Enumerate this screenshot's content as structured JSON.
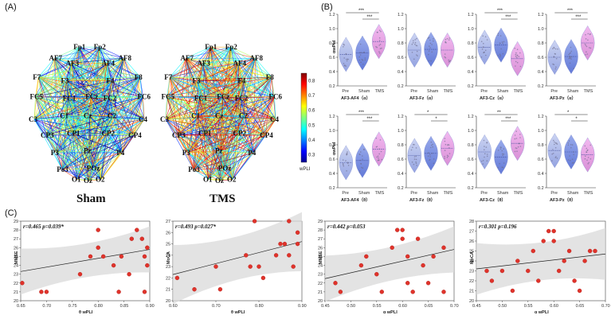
{
  "panel_letters": {
    "a": "(A)",
    "b": "(B)",
    "c": "(C)"
  },
  "network": {
    "titles": [
      "Sham",
      "TMS"
    ],
    "colorbar": {
      "label": "wPLI",
      "ticks": [
        "0.8",
        "0.7",
        "0.6",
        "0.5",
        "0.4",
        "0.3"
      ],
      "min": 0.25,
      "max": 0.85
    },
    "nodes": [
      {
        "label": "Fp1"
      },
      {
        "label": "Fp2"
      },
      {
        "label": "AF7"
      },
      {
        "label": "AF8"
      },
      {
        "label": "AF3"
      },
      {
        "label": "AF4"
      },
      {
        "label": "F7"
      },
      {
        "label": "F8"
      },
      {
        "label": "F3"
      },
      {
        "label": "F4"
      },
      {
        "label": "FC5"
      },
      {
        "label": "FC6"
      },
      {
        "label": "FC1"
      },
      {
        "label": "FCz"
      },
      {
        "label": "FC2"
      },
      {
        "label": "C3"
      },
      {
        "label": "C1"
      },
      {
        "label": "Cz"
      },
      {
        "label": "C2"
      },
      {
        "label": "C4"
      },
      {
        "label": "CP3"
      },
      {
        "label": "CP1"
      },
      {
        "label": "CP2"
      },
      {
        "label": "CP4"
      },
      {
        "label": "P3"
      },
      {
        "label": "P4"
      },
      {
        "label": "Pz"
      },
      {
        "label": "POz"
      },
      {
        "label": "O1"
      },
      {
        "label": "O2"
      },
      {
        "label": "Oz"
      },
      {
        "label": "Po3"
      }
    ]
  },
  "chart_data": [
    {
      "type": "violin",
      "panel": "B",
      "ylabel": "αwPLI",
      "xlabel": "AF3-AF4（α）",
      "categories": [
        "Pre",
        "Sham",
        "TMS"
      ],
      "ylim": [
        0.2,
        1.2
      ],
      "medians": [
        0.64,
        0.66,
        0.82
      ],
      "significance": [
        "***",
        "***"
      ]
    },
    {
      "type": "violin",
      "panel": "B",
      "ylabel": "",
      "xlabel": "AF3-Fz（α）",
      "categories": [
        "Pre",
        "Sham",
        "TMS"
      ],
      "ylim": [
        0.2,
        1.2
      ],
      "medians": [
        0.7,
        0.71,
        0.7
      ],
      "significance": []
    },
    {
      "type": "violin",
      "panel": "B",
      "ylabel": "",
      "xlabel": "AF3-Cz（α）",
      "categories": [
        "Pre",
        "Sham",
        "TMS"
      ],
      "ylim": [
        0.2,
        1.2
      ],
      "medians": [
        0.74,
        0.77,
        0.58
      ],
      "significance": [
        "***",
        "***"
      ]
    },
    {
      "type": "violin",
      "panel": "B",
      "ylabel": "",
      "xlabel": "AF3-Pz（α）",
      "categories": [
        "Pre",
        "Sham",
        "TMS"
      ],
      "ylim": [
        0.2,
        1.2
      ],
      "medians": [
        0.6,
        0.61,
        0.8
      ],
      "significance": [
        "***",
        "***"
      ]
    },
    {
      "type": "violin",
      "panel": "B",
      "ylabel": "αwPLI",
      "xlabel": "AF3-AF4（θ）",
      "categories": [
        "Pre",
        "Sham",
        "TMS"
      ],
      "ylim": [
        0.2,
        1.2
      ],
      "medians": [
        0.55,
        0.58,
        0.74
      ],
      "significance": [
        "***",
        "***"
      ]
    },
    {
      "type": "violin",
      "panel": "B",
      "ylabel": "",
      "xlabel": "AF3-Fz（θ）",
      "categories": [
        "Pre",
        "Sham",
        "TMS"
      ],
      "ylim": [
        0.2,
        1.2
      ],
      "medians": [
        0.65,
        0.68,
        0.75
      ],
      "significance": [
        "*",
        "*"
      ]
    },
    {
      "type": "violin",
      "panel": "B",
      "ylabel": "",
      "xlabel": "AF3-Cz（θ）",
      "categories": [
        "Pre",
        "Sham",
        "TMS"
      ],
      "ylim": [
        0.2,
        1.2
      ],
      "medians": [
        0.7,
        0.63,
        0.82
      ],
      "significance": [
        "**",
        "***"
      ]
    },
    {
      "type": "violin",
      "panel": "B",
      "ylabel": "",
      "xlabel": "AF3-Pz（θ）",
      "categories": [
        "Pre",
        "Sham",
        "TMS"
      ],
      "ylim": [
        0.2,
        1.2
      ],
      "medians": [
        0.72,
        0.7,
        0.66
      ],
      "significance": [
        "*",
        "*"
      ]
    },
    {
      "type": "scatter",
      "panel": "C",
      "stat": "r=0.465  p=0.039*",
      "xlabel": "θ wPLI",
      "ylabel": "MMSE",
      "xlim": [
        0.65,
        0.9
      ],
      "ylim": [
        20,
        29
      ],
      "xticks": [
        0.65,
        0.7,
        0.75,
        0.8,
        0.85,
        0.9
      ],
      "yticks": [
        20,
        21,
        22,
        23,
        24,
        25,
        26,
        27,
        28,
        29
      ],
      "tick_labels_x": [
        "0.65",
        "0.70",
        "0.75",
        "0.80",
        "0.85",
        "0.90"
      ],
      "tick_labels_y": [
        "20",
        "21",
        "22",
        "23",
        "24",
        "25",
        "26",
        "27",
        "28",
        "29"
      ],
      "x": [
        0.653,
        0.69,
        0.7,
        0.765,
        0.785,
        0.8,
        0.8,
        0.81,
        0.83,
        0.84,
        0.845,
        0.86,
        0.865,
        0.875,
        0.885,
        0.89,
        0.895,
        0.895,
        0.89
      ],
      "y": [
        22,
        21,
        21,
        23,
        25,
        26,
        28,
        25,
        24,
        21,
        25,
        23,
        27,
        28,
        27,
        21,
        26,
        24,
        25
      ],
      "fit": [
        23.3,
        25.8
      ]
    },
    {
      "type": "scatter",
      "panel": "C",
      "stat": "r=0.493  p=0.027*",
      "xlabel": "θ wPLI",
      "ylabel": "MoCA",
      "xlim": [
        0.6,
        0.9
      ],
      "ylim": [
        20,
        27
      ],
      "xticks": [
        0.6,
        0.7,
        0.8,
        0.9
      ],
      "yticks": [
        20,
        21,
        22,
        23,
        24,
        25,
        26,
        27
      ],
      "tick_labels_x": [
        "0.60",
        "0.70",
        "0.80",
        "0.90"
      ],
      "tick_labels_y": [
        "20",
        "21",
        "22",
        "23",
        "24",
        "25",
        "26",
        "27"
      ],
      "x": [
        0.61,
        0.65,
        0.7,
        0.71,
        0.77,
        0.78,
        0.79,
        0.8,
        0.81,
        0.84,
        0.85,
        0.86,
        0.87,
        0.87,
        0.88,
        0.89,
        0.89
      ],
      "y": [
        22,
        21,
        23,
        21,
        24,
        23,
        27,
        23,
        22,
        24,
        25,
        25,
        24,
        27,
        23,
        26,
        25
      ],
      "fit": [
        22.3,
        25.2
      ]
    },
    {
      "type": "scatter",
      "panel": "C",
      "stat": "r=0.442  p=0.053",
      "xlabel": "α wPLI",
      "ylabel": "MMSE",
      "xlim": [
        0.45,
        0.7
      ],
      "ylim": [
        20,
        29
      ],
      "xticks": [
        0.45,
        0.5,
        0.55,
        0.6,
        0.65,
        0.7
      ],
      "yticks": [
        20,
        21,
        22,
        23,
        24,
        25,
        26,
        27,
        28,
        29
      ],
      "tick_labels_x": [
        "0.45",
        "0.50",
        "0.55",
        "0.60",
        "0.65",
        "0.70"
      ],
      "tick_labels_y": [
        "20",
        "21",
        "22",
        "23",
        "24",
        "25",
        "26",
        "27",
        "28",
        "29"
      ],
      "x": [
        0.47,
        0.48,
        0.52,
        0.53,
        0.55,
        0.56,
        0.58,
        0.59,
        0.6,
        0.6,
        0.61,
        0.61,
        0.62,
        0.63,
        0.64,
        0.65,
        0.66,
        0.68,
        0.68
      ],
      "y": [
        22,
        21,
        24,
        25,
        23,
        21,
        26,
        28,
        27,
        28,
        25,
        22,
        21,
        27,
        24,
        22,
        25,
        26,
        21
      ],
      "fit": [
        22.5,
        25.8
      ]
    },
    {
      "type": "scatter",
      "panel": "C",
      "stat": "r=0.301  p=0.196",
      "xlabel": "α wPLI",
      "ylabel": "MoCA",
      "xlim": [
        0.45,
        0.7
      ],
      "ylim": [
        20,
        28
      ],
      "xticks": [
        0.45,
        0.5,
        0.55,
        0.6,
        0.65,
        0.7
      ],
      "yticks": [
        20,
        21,
        22,
        23,
        24,
        25,
        26,
        27,
        28
      ],
      "tick_labels_x": [
        "0.45",
        "0.50",
        "0.55",
        "0.60",
        "0.65",
        "0.70"
      ],
      "tick_labels_y": [
        "20",
        "21",
        "22",
        "23",
        "24",
        "25",
        "26",
        "27",
        "28"
      ],
      "x": [
        0.47,
        0.48,
        0.5,
        0.52,
        0.53,
        0.55,
        0.56,
        0.57,
        0.58,
        0.59,
        0.6,
        0.6,
        0.61,
        0.62,
        0.63,
        0.64,
        0.65,
        0.66,
        0.67,
        0.68
      ],
      "y": [
        23,
        22,
        23,
        21,
        24,
        23,
        25,
        22,
        26,
        27,
        27,
        26,
        23,
        24,
        25,
        22,
        21,
        24,
        25,
        25
      ],
      "fit": [
        23.2,
        24.7
      ]
    }
  ]
}
